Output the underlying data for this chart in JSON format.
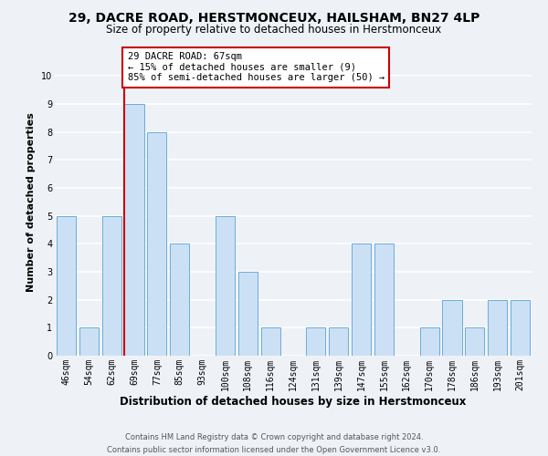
{
  "title": "29, DACRE ROAD, HERSTMONCEUX, HAILSHAM, BN27 4LP",
  "subtitle": "Size of property relative to detached houses in Herstmonceux",
  "xlabel": "Distribution of detached houses by size in Herstmonceux",
  "ylabel": "Number of detached properties",
  "categories": [
    "46sqm",
    "54sqm",
    "62sqm",
    "69sqm",
    "77sqm",
    "85sqm",
    "93sqm",
    "100sqm",
    "108sqm",
    "116sqm",
    "124sqm",
    "131sqm",
    "139sqm",
    "147sqm",
    "155sqm",
    "162sqm",
    "170sqm",
    "178sqm",
    "186sqm",
    "193sqm",
    "201sqm"
  ],
  "values": [
    5,
    1,
    5,
    9,
    8,
    4,
    0,
    5,
    3,
    1,
    0,
    1,
    1,
    4,
    4,
    0,
    1,
    2,
    1,
    2,
    2
  ],
  "bar_color": "#cce0f5",
  "bar_edge_color": "#6aaed6",
  "reference_line_index": 3,
  "reference_line_color": "#cc0000",
  "annotation_line1": "29 DACRE ROAD: 67sqm",
  "annotation_line2": "← 15% of detached houses are smaller (9)",
  "annotation_line3": "85% of semi-detached houses are larger (50) →",
  "annotation_box_color": "#cc0000",
  "ylim": [
    0,
    11
  ],
  "yticks": [
    0,
    1,
    2,
    3,
    4,
    5,
    6,
    7,
    8,
    9,
    10
  ],
  "footer_line1": "Contains HM Land Registry data © Crown copyright and database right 2024.",
  "footer_line2": "Contains public sector information licensed under the Open Government Licence v3.0.",
  "background_color": "#eef2f7",
  "plot_background_color": "#eef2f7",
  "grid_color": "#ffffff",
  "title_fontsize": 10,
  "subtitle_fontsize": 8.5,
  "xlabel_fontsize": 8.5,
  "ylabel_fontsize": 8,
  "tick_fontsize": 7,
  "footer_fontsize": 6,
  "annotation_fontsize": 7.5
}
